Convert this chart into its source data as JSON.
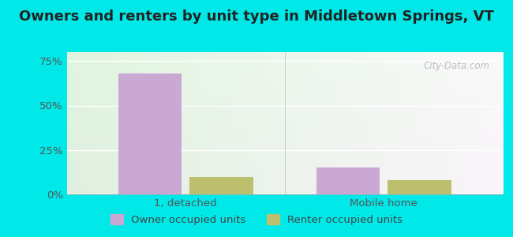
{
  "title": "Owners and renters by unit type in Middletown Springs, VT",
  "categories": [
    "1, detached",
    "Mobile home"
  ],
  "owner_values": [
    68.0,
    15.0
  ],
  "renter_values": [
    10.0,
    8.0
  ],
  "owner_color": "#c9a8d4",
  "renter_color": "#bbbf6e",
  "bg_color": "#00e8e8",
  "yticks": [
    0,
    25,
    50,
    75
  ],
  "ylim": [
    0,
    80
  ],
  "bar_width": 0.32,
  "legend_owner": "Owner occupied units",
  "legend_renter": "Renter occupied units",
  "watermark": "City-Data.com",
  "title_fontsize": 13,
  "tick_fontsize": 9.5,
  "legend_fontsize": 9.5
}
